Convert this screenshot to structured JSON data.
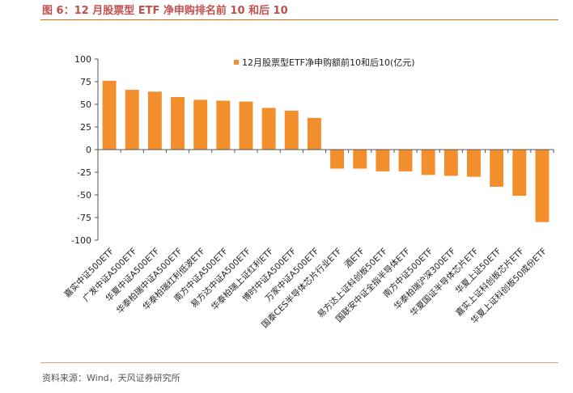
{
  "figure": {
    "title": "图 6：12 月股票型 ETF 净申购排名前 10 和后 10",
    "source": "资料来源：Wind，天风证券研究所"
  },
  "chart_data": {
    "type": "bar",
    "categories": [
      "嘉实中证500ETF",
      "广发中证A500ETF",
      "华夏中证A500ETF",
      "华泰柏瑞中证A500ETF",
      "华泰柏瑞红利低波ETF",
      "南方中证A500ETF",
      "易方达中证A500ETF",
      "华泰柏瑞上证红利ETF",
      "博时中证A500ETF",
      "万家中证A500ETF",
      "国泰CES半导体芯片行业ETF",
      "酒ETF",
      "易方达上证科创板50ETF",
      "国联安中证全指半导体ETF",
      "南方中证500ETF",
      "华泰柏瑞沪深300ETF",
      "华夏国证半导体芯片ETF",
      "华夏上证50ETF",
      "嘉实上证科创板芯片ETF",
      "华夏上证科创板50成份ETF"
    ],
    "series": [
      {
        "name": "12月股票型ETF净申购额前10和后10(亿元)",
        "color": "#f28e2b",
        "values": [
          76,
          66,
          64,
          58,
          55,
          54,
          53,
          46,
          43,
          35,
          -21,
          -21,
          -24,
          -24,
          -28,
          -29,
          -30,
          -41,
          -51,
          -80
        ]
      }
    ],
    "xlabel": "",
    "ylabel": "",
    "ylim": [
      -100,
      100
    ],
    "yticks": [
      100,
      75,
      50,
      25,
      0,
      -25,
      -50,
      -75,
      -100
    ],
    "grid": false,
    "legend": "top-center"
  }
}
